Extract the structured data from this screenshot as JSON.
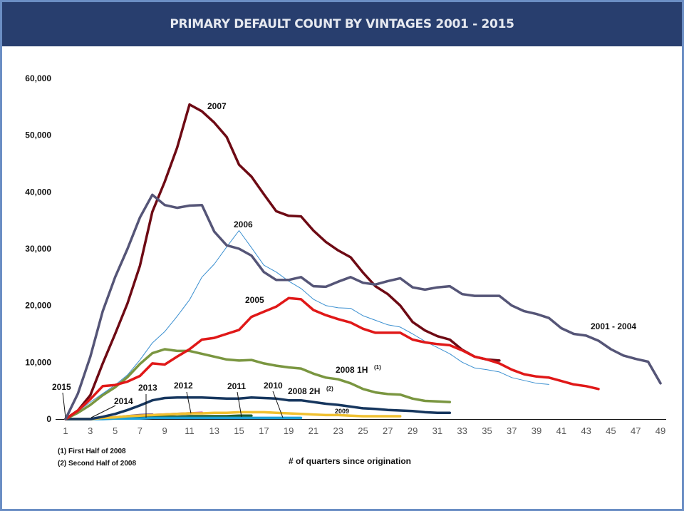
{
  "header": {
    "title": "PRIMARY DEFAULT COUNT BY VINTAGES 2001 - 2015"
  },
  "chart_data": {
    "type": "line",
    "title": "PRIMARY DEFAULT COUNT BY VINTAGES 2001 - 2015",
    "xlabel": "# of quarters since origination",
    "ylabel": "",
    "xlim": [
      1,
      49
    ],
    "ylim": [
      0,
      60000
    ],
    "grid": false,
    "x_ticks": [
      1,
      3,
      5,
      7,
      9,
      11,
      13,
      15,
      17,
      19,
      21,
      23,
      25,
      27,
      29,
      31,
      33,
      35,
      37,
      39,
      41,
      43,
      45,
      47,
      49
    ],
    "y_ticks": [
      0,
      10000,
      20000,
      30000,
      40000,
      50000,
      60000
    ],
    "y_tick_labels": [
      "0",
      "10,000",
      "20,000",
      "30,000",
      "40,000",
      "50,000",
      "60,000"
    ],
    "footnotes": [
      "(1)  First Half of 2008",
      "(2)  Second Half of 2008"
    ],
    "series": [
      {
        "name": "2001 - 2004",
        "color": "#555577",
        "width": "thick",
        "values": [
          0,
          4500,
          11000,
          19000,
          25000,
          30000,
          35500,
          39500,
          37700,
          37200,
          37600,
          37700,
          33000,
          30600,
          30000,
          28800,
          25900,
          24500,
          24500,
          25000,
          23400,
          23300,
          24200,
          25000,
          24000,
          23700,
          24300,
          24800,
          23200,
          22800,
          23200,
          23400,
          22000,
          21700,
          21700,
          21700,
          20000,
          19000,
          18500,
          17800,
          16000,
          15000,
          14700,
          13800,
          12300,
          11200,
          10600,
          10100,
          6300
        ]
      },
      {
        "name": "2005",
        "color": "#e01818",
        "width": "thick",
        "values": [
          0,
          1500,
          3500,
          5800,
          6000,
          6600,
          7600,
          9800,
          9600,
          11000,
          12300,
          14000,
          14300,
          15000,
          15700,
          18000,
          18900,
          19800,
          21300,
          21100,
          19200,
          18300,
          17600,
          17000,
          15900,
          15200,
          15200,
          15200,
          14000,
          13500,
          13200,
          13000,
          12100,
          11000,
          10500,
          9800,
          8700,
          7900,
          7500,
          7300,
          6700,
          6100,
          5800,
          5300
        ]
      },
      {
        "name": "2006",
        "color": "#3a8fd0",
        "width": "thin",
        "values": [
          0,
          1400,
          3000,
          4500,
          6000,
          7800,
          10400,
          13400,
          15400,
          18100,
          21000,
          25000,
          27300,
          30300,
          33200,
          30200,
          27100,
          25900,
          24300,
          23000,
          21100,
          20000,
          19600,
          19500,
          18200,
          17400,
          16600,
          16200,
          15000,
          13700,
          12600,
          11500,
          10000,
          9000,
          8700,
          8300,
          7300,
          6800,
          6300,
          6100
        ]
      },
      {
        "name": "2007",
        "color": "#6e0a14",
        "width": "thick",
        "values": [
          0,
          1500,
          4200,
          9800,
          15000,
          20400,
          27000,
          36500,
          41800,
          47800,
          55400,
          54200,
          52200,
          49700,
          44800,
          42700,
          39600,
          36600,
          35800,
          35700,
          33200,
          31200,
          29700,
          28500,
          25800,
          23400,
          22000,
          20000,
          17100,
          15600,
          14600,
          14000,
          12200,
          11000,
          10500,
          10300
        ]
      },
      {
        "name": "2008 1H",
        "footnote": "(1)",
        "color": "#7a9640",
        "width": "thick",
        "values": [
          0,
          1100,
          2500,
          4200,
          5600,
          7400,
          9700,
          11600,
          12300,
          12000,
          12000,
          11500,
          11000,
          10500,
          10300,
          10400,
          9800,
          9400,
          9100,
          8900,
          8000,
          7300,
          7000,
          6300,
          5300,
          4700,
          4400,
          4300,
          3600,
          3200,
          3100,
          3000
        ]
      },
      {
        "name": "2008 2H",
        "footnote": "(2)",
        "color": "#16365e",
        "width": "thick",
        "values": [
          0,
          0,
          0,
          400,
          900,
          1600,
          2400,
          3300,
          3700,
          3800,
          3800,
          3800,
          3700,
          3600,
          3600,
          3800,
          3700,
          3600,
          3300,
          3300,
          3000,
          2700,
          2500,
          2200,
          1900,
          1800,
          1600,
          1500,
          1400,
          1200,
          1100,
          1100
        ]
      },
      {
        "name": "2009",
        "color": "#f0c030",
        "width": "thick",
        "values": [
          0,
          0,
          0,
          200,
          300,
          500,
          600,
          700,
          800,
          900,
          1000,
          1000,
          1100,
          1100,
          1200,
          1200,
          1200,
          1100,
          1000,
          900,
          800,
          700,
          700,
          600,
          500,
          500,
          500,
          500
        ]
      },
      {
        "name": "2010",
        "color": "#1ba0d8",
        "width": "thick",
        "values": [
          0,
          0,
          0,
          0,
          100,
          100,
          100,
          200,
          200,
          200,
          200,
          200,
          200,
          200,
          200,
          200,
          200,
          200,
          200,
          200
        ]
      },
      {
        "name": "2011",
        "color": "#1f5e2e",
        "width": "thick",
        "values": [
          0,
          0,
          0,
          100,
          200,
          300,
          300,
          400,
          400,
          400,
          500,
          500,
          500,
          500,
          600,
          600
        ]
      },
      {
        "name": "2012",
        "color": "#c02a8c",
        "width": "thick",
        "values": [
          0,
          0,
          0,
          200,
          300,
          400,
          600,
          700,
          800,
          900,
          1000,
          1100
        ]
      },
      {
        "name": "2013",
        "color": "#6d5a8a",
        "width": "thick",
        "values": [
          0,
          0,
          0,
          100,
          300,
          500,
          700,
          800
        ]
      },
      {
        "name": "2014",
        "color": "#c8b89a",
        "width": "thin",
        "values": [
          0,
          0,
          100,
          100
        ]
      },
      {
        "name": "2015",
        "color": "#8a6a8a",
        "width": "thin",
        "values": [
          0,
          0
        ]
      }
    ],
    "annotations": [
      {
        "text": "2007",
        "series": "2007"
      },
      {
        "text": "2006",
        "series": "2006"
      },
      {
        "text": "2005",
        "series": "2005"
      },
      {
        "text": "2001 - 2004",
        "series": "2001 - 2004"
      },
      {
        "text": "2008 1H",
        "sup": "(1)",
        "series": "2008 1H"
      },
      {
        "text": "2008 2H",
        "sup": "(2)",
        "series": "2008 2H"
      },
      {
        "text": "2009",
        "series": "2009"
      },
      {
        "text": "2010",
        "series": "2010"
      },
      {
        "text": "2011",
        "series": "2011"
      },
      {
        "text": "2012",
        "series": "2012"
      },
      {
        "text": "2013",
        "series": "2013"
      },
      {
        "text": "2014",
        "series": "2014"
      },
      {
        "text": "2015",
        "series": "2015"
      }
    ]
  }
}
